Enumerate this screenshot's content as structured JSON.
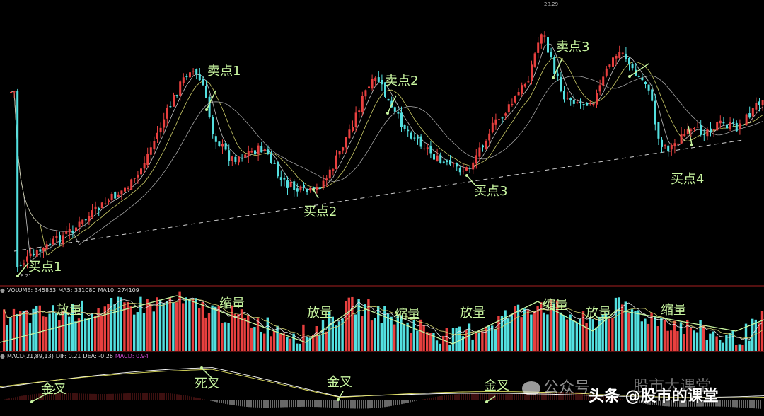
{
  "chart_data": {
    "type": "candlestick",
    "price_labels": {
      "high": "28.29",
      "low": "8.21"
    },
    "annotations": {
      "sell": [
        "卖点1",
        "卖点2",
        "卖点3"
      ],
      "buy": [
        "买点1",
        "买点2",
        "买点3",
        "买点4"
      ],
      "volume": [
        "放量",
        "缩量",
        "放量",
        "缩量",
        "放量",
        "缩量",
        "放量",
        "缩量"
      ],
      "macd": [
        "金叉",
        "死叉",
        "金叉",
        "金叉"
      ]
    },
    "volume_header": {
      "label": "VOLUME: 345853",
      "ma5": "MA5: 331080",
      "ma10": "MA10: 274109"
    },
    "macd_header": {
      "label": "MACD(21,89,13)",
      "dif": "DIF: 0.21",
      "dea": "DEA: -0.26",
      "macd": "MACD: 0.94"
    },
    "colors": {
      "up": "#e8403f",
      "down": "#53e0e0",
      "macd_label": "#d44bd4",
      "annotation": "#c8f5a0",
      "divider": "#a82020"
    }
  },
  "watermark": {
    "left": "公众号",
    "right": "股市大课堂",
    "brand": "头条 @股市的课堂"
  }
}
